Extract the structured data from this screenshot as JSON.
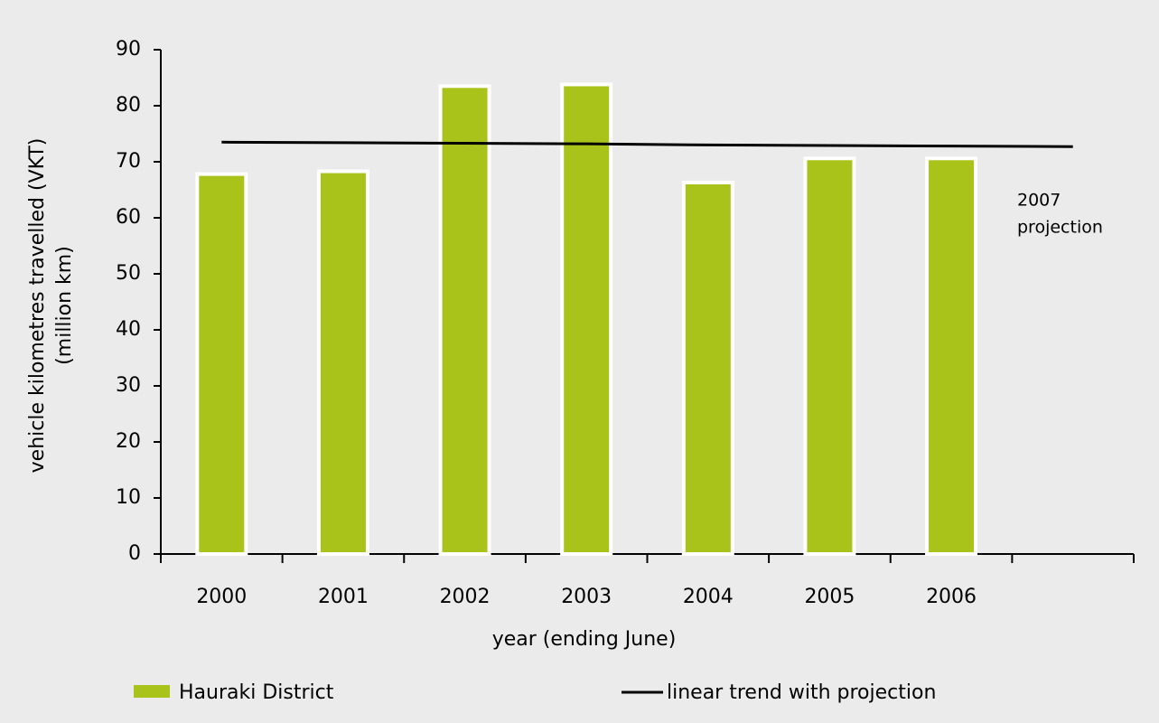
{
  "chart_data": {
    "type": "bar",
    "xlabel": "year (ending June)",
    "ylabel": [
      "vehicle kilometres travelled (VKT)",
      "(million km)"
    ],
    "categories": [
      "2000",
      "2001",
      "2002",
      "2003",
      "2004",
      "2005",
      "2006",
      null
    ],
    "series": [
      {
        "name": "Hauraki District",
        "type": "bar",
        "color": "#a9c31a",
        "values": [
          67.8,
          68.3,
          83.5,
          83.8,
          66.3,
          70.6,
          70.6,
          null
        ]
      },
      {
        "name": "linear trend with projection",
        "type": "line",
        "color": "#000000",
        "values": [
          73.5,
          73.4,
          73.3,
          73.2,
          73.0,
          72.9,
          72.8,
          72.7
        ]
      }
    ],
    "annotation": [
      "2007",
      "projection"
    ],
    "ylim": [
      0,
      90
    ],
    "yticks": [
      0,
      10,
      20,
      30,
      40,
      50,
      60,
      70,
      80,
      90
    ]
  }
}
